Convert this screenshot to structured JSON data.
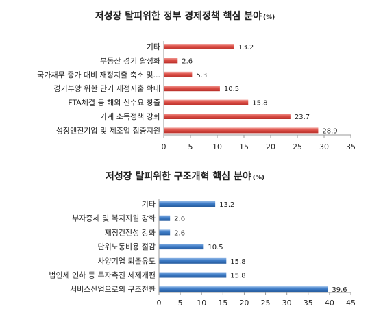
{
  "chart_data": [
    {
      "type": "bar",
      "orientation": "horizontal",
      "title": "저성장 탈피위한 정부 경제정책 핵심 분야",
      "unit": "(%)",
      "categories": [
        "기타",
        "부동산 경기 활성화",
        "국가채무 증가 대비 재정지출 축소 및...",
        "경기부양 위한 단기 재정지출 확대",
        "FTA체결 등 해외 신수요 창출",
        "가계 소득정책 강화",
        "성장엔진기업 및 제조업 집중지원"
      ],
      "values": [
        13.2,
        2.6,
        5.3,
        10.5,
        15.8,
        23.7,
        28.9
      ],
      "value_labels": [
        "13.2",
        "2.6",
        "5.3",
        "10.5",
        "15.8",
        "23.7",
        "28.9"
      ],
      "xlim": [
        0,
        35
      ],
      "ticks": [
        0,
        5,
        10,
        15,
        20,
        25,
        30,
        35
      ],
      "tick_labels": [
        "0",
        "5",
        "10",
        "15",
        "20",
        "25",
        "30",
        "35"
      ],
      "bar_color": "#d9534f",
      "grid": false,
      "legend": "none"
    },
    {
      "type": "bar",
      "orientation": "horizontal",
      "title": "저성장 탈피위한 구조개혁 핵심 분야",
      "unit": "(%)",
      "categories": [
        "기타",
        "부자증세 및 복지지원 강화",
        "재정건전성 강화",
        "단위노동비용 절감",
        "사양기업 퇴출유도",
        "법인세 인하 등 투자촉진 세제개편",
        "서비스산업으로의 구조전환"
      ],
      "values": [
        13.2,
        2.6,
        2.6,
        10.5,
        15.8,
        15.8,
        39.6
      ],
      "value_labels": [
        "13.2",
        "2.6",
        "2.6",
        "10.5",
        "15.8",
        "15.8",
        "39.6"
      ],
      "xlim": [
        0,
        45
      ],
      "ticks": [
        0,
        5,
        10,
        15,
        20,
        25,
        30,
        35,
        40,
        45
      ],
      "tick_labels": [
        "0",
        "5",
        "10",
        "15",
        "20",
        "25",
        "30",
        "35",
        "40",
        "45"
      ],
      "bar_color": "#3a78c2",
      "grid": false,
      "legend": "none"
    }
  ]
}
